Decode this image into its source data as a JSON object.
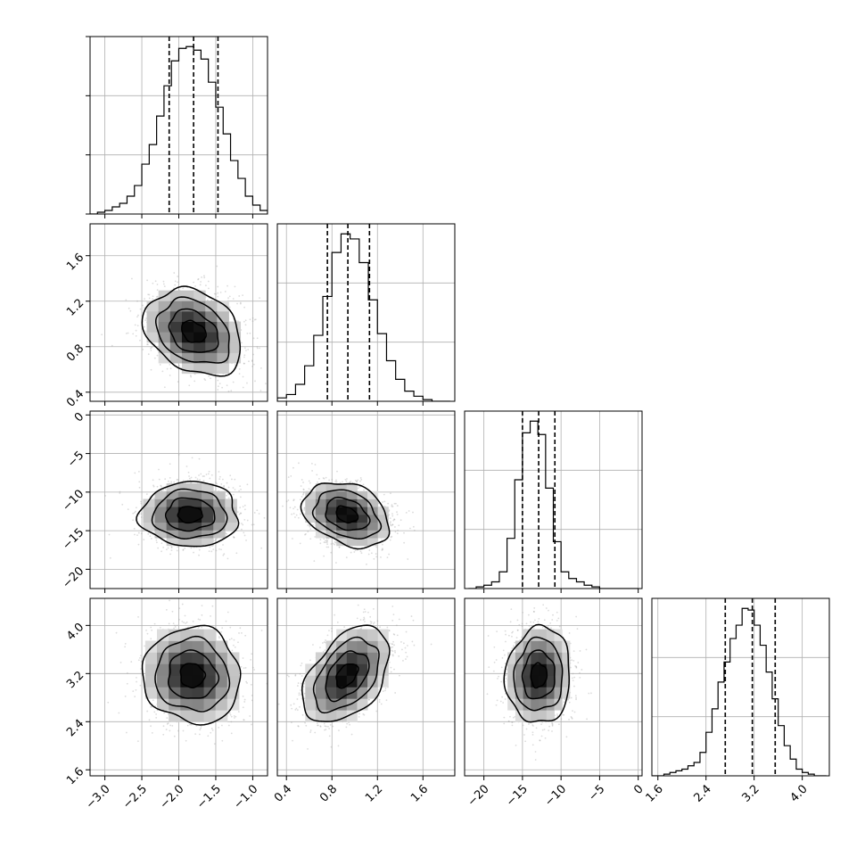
{
  "chart_data": {
    "type": "corner",
    "title": "",
    "n_params": 4,
    "colors": {
      "line": "#000000",
      "grid": "#b0b0b0",
      "points": "#9a9a9a",
      "density_max": "#000000",
      "density_min": "#ffffff"
    },
    "grid": true,
    "params": [
      {
        "label": "",
        "range": [
          -3.2,
          -0.8
        ],
        "ticks": [
          -3.0,
          -2.5,
          -2.0,
          -1.5,
          -1.0
        ],
        "tick_labels": [
          "−3.0",
          "−2.5",
          "−2.0",
          "−1.5",
          "−1.0"
        ],
        "quantiles": [
          -2.13,
          -1.8,
          -1.47
        ],
        "histogram": {
          "bin_centers": [
            -3.15,
            -3.05,
            -2.95,
            -2.85,
            -2.75,
            -2.65,
            -2.55,
            -2.45,
            -2.35,
            -2.25,
            -2.15,
            -2.05,
            -1.95,
            -1.85,
            -1.75,
            -1.65,
            -1.55,
            -1.45,
            -1.35,
            -1.25,
            -1.15,
            -1.05,
            -0.95,
            -0.85
          ],
          "counts": [
            0.0,
            0.01,
            0.02,
            0.04,
            0.06,
            0.1,
            0.16,
            0.28,
            0.39,
            0.55,
            0.72,
            0.86,
            0.93,
            0.94,
            0.92,
            0.87,
            0.74,
            0.6,
            0.45,
            0.3,
            0.2,
            0.1,
            0.05,
            0.02
          ]
        }
      },
      {
        "label": "",
        "range": [
          0.32,
          1.88
        ],
        "ticks": [
          0.4,
          0.8,
          1.2,
          1.6
        ],
        "tick_labels": [
          "0.4",
          "0.8",
          "1.2",
          "1.6"
        ],
        "quantiles": [
          0.76,
          0.94,
          1.13
        ],
        "histogram": {
          "bin_centers": [
            0.36,
            0.44,
            0.52,
            0.6,
            0.68,
            0.76,
            0.84,
            0.92,
            1.0,
            1.08,
            1.16,
            1.24,
            1.32,
            1.4,
            1.48,
            1.56,
            1.64,
            1.72,
            1.8
          ],
          "counts": [
            0.02,
            0.04,
            0.1,
            0.21,
            0.39,
            0.62,
            0.88,
            0.99,
            0.96,
            0.82,
            0.6,
            0.4,
            0.24,
            0.13,
            0.06,
            0.03,
            0.01,
            0.0,
            0.0
          ]
        }
      },
      {
        "label": "",
        "range": [
          -22.5,
          0.5
        ],
        "ticks": [
          -20,
          -15,
          -10,
          -5,
          0
        ],
        "tick_labels": [
          "−20",
          "−15",
          "−10",
          "−5",
          "0"
        ],
        "quantiles": [
          -15.0,
          -12.9,
          -10.8
        ],
        "histogram": {
          "bin_centers": [
            -21.5,
            -20.5,
            -19.5,
            -18.5,
            -17.5,
            -16.5,
            -15.5,
            -14.5,
            -13.5,
            -12.5,
            -11.5,
            -10.5,
            -9.5,
            -8.5,
            -7.5,
            -6.5,
            -5.5,
            -4.5,
            -3.5,
            -2.5,
            -1.5,
            -0.5
          ],
          "counts": [
            0.0,
            0.01,
            0.02,
            0.04,
            0.1,
            0.3,
            0.65,
            0.93,
            1.0,
            0.92,
            0.6,
            0.28,
            0.1,
            0.06,
            0.04,
            0.02,
            0.01,
            0.0,
            0.0,
            0.0,
            0.0,
            0.0
          ]
        }
      },
      {
        "label": "",
        "range": [
          1.5,
          4.45
        ],
        "ticks": [
          1.6,
          2.4,
          3.2,
          4.0
        ],
        "tick_labels": [
          "1.6",
          "2.4",
          "3.2",
          "4.0"
        ],
        "quantiles": [
          2.72,
          3.17,
          3.55
        ],
        "histogram": {
          "bin_centers": [
            1.55,
            1.65,
            1.75,
            1.85,
            1.95,
            2.05,
            2.15,
            2.25,
            2.35,
            2.45,
            2.55,
            2.65,
            2.75,
            2.85,
            2.95,
            3.05,
            3.15,
            3.25,
            3.35,
            3.45,
            3.55,
            3.65,
            3.75,
            3.85,
            3.95,
            4.05,
            4.15,
            4.25,
            4.35
          ],
          "counts": [
            0.0,
            0.0,
            0.01,
            0.02,
            0.03,
            0.04,
            0.06,
            0.08,
            0.14,
            0.26,
            0.4,
            0.56,
            0.68,
            0.82,
            0.9,
            1.0,
            0.99,
            0.9,
            0.78,
            0.62,
            0.46,
            0.3,
            0.18,
            0.1,
            0.04,
            0.02,
            0.01,
            0.0,
            0.0
          ]
        }
      }
    ],
    "pairs": [
      {
        "x_param": 0,
        "y_param": 1,
        "center": [
          -1.8,
          0.93
        ],
        "sigma": [
          0.33,
          0.19
        ],
        "correlation": -0.28
      },
      {
        "x_param": 0,
        "y_param": 2,
        "center": [
          -1.85,
          -12.9
        ],
        "sigma": [
          0.33,
          2.1
        ],
        "correlation": 0.0
      },
      {
        "x_param": 1,
        "y_param": 2,
        "center": [
          0.93,
          -12.9
        ],
        "sigma": [
          0.19,
          2.1
        ],
        "correlation": -0.3
      },
      {
        "x_param": 0,
        "y_param": 3,
        "center": [
          -1.82,
          3.17
        ],
        "sigma": [
          0.33,
          0.4
        ],
        "correlation": -0.05
      },
      {
        "x_param": 1,
        "y_param": 3,
        "center": [
          0.93,
          3.17
        ],
        "sigma": [
          0.19,
          0.4
        ],
        "correlation": 0.45
      },
      {
        "x_param": 2,
        "y_param": 3,
        "center": [
          -12.9,
          3.17
        ],
        "sigma": [
          2.1,
          0.4
        ],
        "correlation": 0.05
      }
    ],
    "contour_levels": [
      0.5,
      1.0,
      1.5,
      2.0
    ]
  }
}
